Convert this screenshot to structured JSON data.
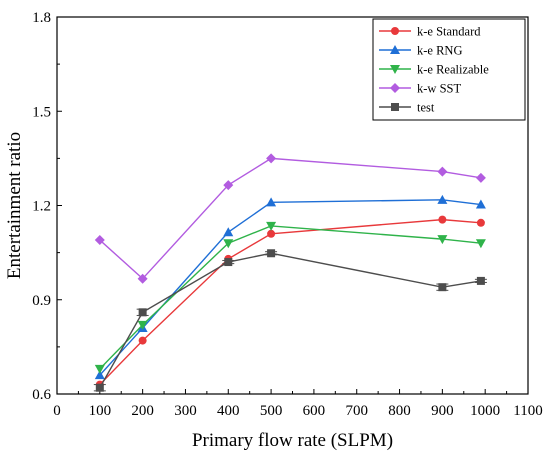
{
  "chart_data": {
    "type": "line",
    "title": "",
    "xlabel": "Primary flow rate (SLPM)",
    "ylabel": "Entertainment ratio",
    "xlim": [
      0,
      1100
    ],
    "ylim": [
      0.6,
      1.8
    ],
    "xticks": [
      0,
      100,
      200,
      300,
      400,
      500,
      600,
      700,
      800,
      900,
      1000,
      1100
    ],
    "yticks": [
      0.6,
      0.9,
      1.2,
      1.5,
      1.8
    ],
    "grid": false,
    "legend_position": "top-right",
    "x": [
      100,
      200,
      400,
      500,
      900,
      990
    ],
    "series": [
      {
        "name": "k-e Standard",
        "color": "#e8393b",
        "marker": "circle",
        "values": [
          0.63,
          0.77,
          1.03,
          1.11,
          1.155,
          1.145
        ]
      },
      {
        "name": "k-e RNG",
        "color": "#1f6fd6",
        "marker": "triangle-up",
        "values": [
          0.66,
          0.81,
          1.115,
          1.21,
          1.218,
          1.203
        ]
      },
      {
        "name": "k-e Realizable",
        "color": "#2fb34a",
        "marker": "triangle-down",
        "values": [
          0.68,
          0.82,
          1.08,
          1.135,
          1.093,
          1.08
        ]
      },
      {
        "name": "k-w SST",
        "color": "#b25ce0",
        "marker": "diamond",
        "values": [
          1.09,
          0.967,
          1.265,
          1.35,
          1.308,
          1.288
        ]
      },
      {
        "name": "test",
        "color": "#4d4d4d",
        "marker": "square",
        "values": [
          0.62,
          0.86,
          1.02,
          1.048,
          0.94,
          0.96
        ],
        "error": [
          0.01,
          0.01,
          0.005,
          0.005,
          0.01,
          0.005
        ]
      }
    ]
  }
}
